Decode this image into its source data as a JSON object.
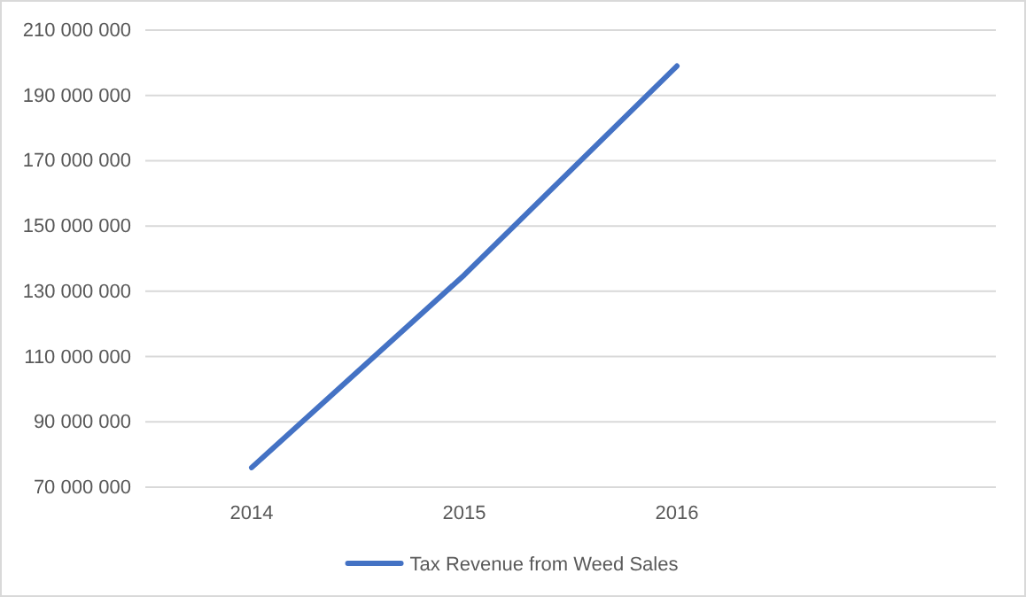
{
  "chart_data": {
    "type": "line",
    "categories": [
      "2014",
      "2015",
      "2016",
      null
    ],
    "series": [
      {
        "name": "Tax Revenue from Weed Sales",
        "color": "#4472c4",
        "values": [
          76000000,
          135000000,
          199000000,
          null
        ]
      }
    ],
    "ylim": [
      70000000,
      210000000
    ],
    "yticks": [
      {
        "value": 70000000,
        "label": "70 000 000"
      },
      {
        "value": 90000000,
        "label": "90 000 000"
      },
      {
        "value": 110000000,
        "label": "110 000 000"
      },
      {
        "value": 130000000,
        "label": "130 000 000"
      },
      {
        "value": 150000000,
        "label": "150 000 000"
      },
      {
        "value": 170000000,
        "label": "170 000 000"
      },
      {
        "value": 190000000,
        "label": "190 000 000"
      },
      {
        "value": 210000000,
        "label": "210 000 000"
      }
    ],
    "grid": "y",
    "legend": "bottom",
    "marker": "none",
    "line_style": "solid"
  }
}
